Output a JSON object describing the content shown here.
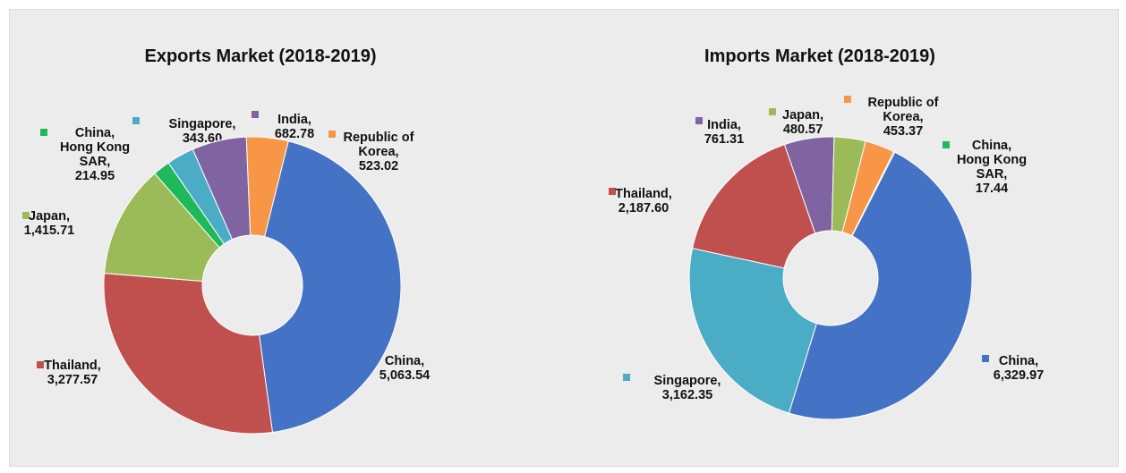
{
  "chart_data": [
    {
      "type": "pie",
      "title": "Exports Market (2018-2019)",
      "slices": [
        {
          "name": "China",
          "value": 5063.54,
          "label": [
            "China,",
            "5,063.54"
          ],
          "color": "#4472c4"
        },
        {
          "name": "Thailand",
          "value": 3277.57,
          "label": [
            "Thailand,",
            "3,277.57"
          ],
          "color": "#c0504d"
        },
        {
          "name": "Japan",
          "value": 1415.71,
          "label": [
            "Japan,",
            "1,415.71"
          ],
          "color": "#9bbb59"
        },
        {
          "name": "China, Hong Kong SAR",
          "value": 214.95,
          "label": [
            "China,",
            "Hong Kong",
            "SAR,",
            "214.95"
          ],
          "color": "#1fb85a"
        },
        {
          "name": "Singapore",
          "value": 343.6,
          "label": [
            "Singapore,",
            "343.60"
          ],
          "color": "#4bacc6"
        },
        {
          "name": "India",
          "value": 682.78,
          "label": [
            "India,",
            "682.78"
          ],
          "color": "#8064a2"
        },
        {
          "name": "Republic of Korea",
          "value": 523.02,
          "label": [
            "Republic of",
            "Korea,",
            "523.02"
          ],
          "color": "#f79646"
        }
      ]
    },
    {
      "type": "pie",
      "title": "Imports Market (2018-2019)",
      "slices": [
        {
          "name": "China",
          "value": 6329.97,
          "label": [
            "China,",
            "6,329.97"
          ],
          "color": "#4472c4"
        },
        {
          "name": "Singapore",
          "value": 3162.35,
          "label": [
            "Singapore,",
            "3,162.35"
          ],
          "color": "#4bacc6"
        },
        {
          "name": "Thailand",
          "value": 2187.6,
          "label": [
            "Thailand,",
            "2,187.60"
          ],
          "color": "#c0504d"
        },
        {
          "name": "India",
          "value": 761.31,
          "label": [
            "India,",
            "761.31"
          ],
          "color": "#8064a2"
        },
        {
          "name": "Japan",
          "value": 480.57,
          "label": [
            "Japan,",
            "480.57"
          ],
          "color": "#9bbb59"
        },
        {
          "name": "Republic of Korea",
          "value": 453.37,
          "label": [
            "Republic of",
            "Korea,",
            "453.37"
          ],
          "color": "#f79646"
        },
        {
          "name": "China, Hong Kong SAR",
          "value": 17.44,
          "label": [
            "China,",
            "Hong Kong",
            "SAR,",
            "17.44"
          ],
          "color": "#1fb85a"
        }
      ]
    }
  ]
}
